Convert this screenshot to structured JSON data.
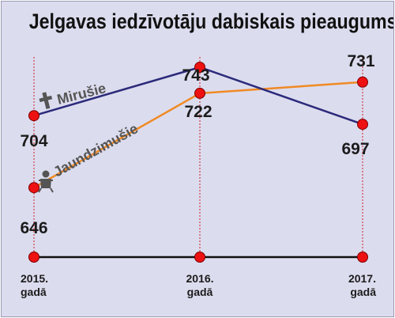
{
  "title": "Jelgavas iedzīvotāju dabiskais pieaugums",
  "colors": {
    "background": "#dcdcef",
    "deaths_line": "#2b2a7a",
    "births_line": "#f08a24",
    "marker": "#ee1111",
    "guide": "#cc2222",
    "baseline": "#111111"
  },
  "icons": {
    "deaths": "cross-icon",
    "births": "baby-icon"
  },
  "chart_data": {
    "type": "line",
    "title": "Jelgavas iedzīvotāju dabiskais pieaugums",
    "categories": [
      "2015. gadā",
      "2016. gadā",
      "2017. gadā"
    ],
    "category_lines": [
      [
        "2015.",
        "gadā"
      ],
      [
        "2016.",
        "gadā"
      ],
      [
        "2017.",
        "gadā"
      ]
    ],
    "series": [
      {
        "name": "Mirušie",
        "values": [
          704,
          743,
          697
        ],
        "labels": [
          "704",
          "743",
          "697"
        ],
        "color": "#2b2a7a"
      },
      {
        "name": "Jaundzimušie",
        "values": [
          646,
          722,
          731
        ],
        "labels": [
          "646",
          "722",
          "731"
        ],
        "color": "#f08a24"
      }
    ],
    "ylim": [
      590,
      750
    ],
    "grid": false,
    "legend": "inline labels along lines"
  }
}
